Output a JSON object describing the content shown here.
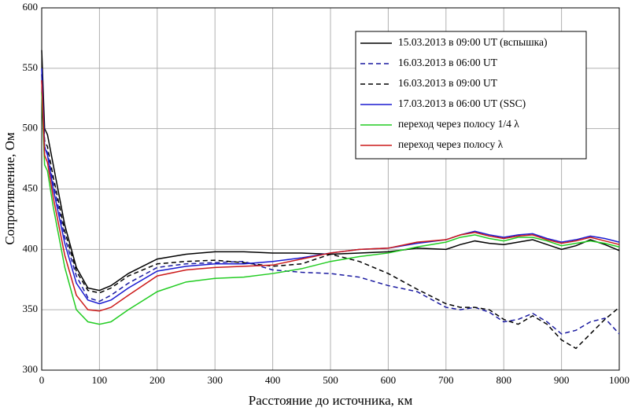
{
  "chart_data": {
    "type": "line",
    "xlabel": "Расстояние до источника, км",
    "ylabel": "Сопротивление, Ом",
    "x": [
      0,
      5,
      10,
      20,
      40,
      60,
      80,
      100,
      120,
      150,
      200,
      250,
      300,
      350,
      400,
      450,
      500,
      550,
      600,
      650,
      700,
      725,
      750,
      775,
      800,
      825,
      850,
      875,
      900,
      925,
      950,
      975,
      1000
    ],
    "series": [
      {
        "name": "15.03.2013 в 09:00 UT (вспышка)",
        "color": "#000000",
        "dash": false,
        "values": [
          565,
          500,
          495,
          470,
          420,
          385,
          368,
          366,
          370,
          380,
          392,
          396,
          398,
          398,
          397,
          397,
          396,
          397,
          398,
          401,
          400,
          404,
          407,
          405,
          404,
          406,
          408,
          404,
          400,
          403,
          408,
          404,
          399
        ]
      },
      {
        "name": "16.03.2013 в 06:00 UT",
        "color": "#1a1aa0",
        "dash": true,
        "values": [
          540,
          485,
          480,
          455,
          410,
          378,
          360,
          357,
          362,
          372,
          385,
          388,
          389,
          390,
          383,
          381,
          380,
          377,
          370,
          365,
          352,
          350,
          352,
          348,
          340,
          342,
          347,
          340,
          330,
          333,
          340,
          343,
          330
        ]
      },
      {
        "name": "16.03.2013 в 09:00 UT",
        "color": "#000000",
        "dash": true,
        "values": [
          545,
          490,
          485,
          460,
          415,
          382,
          366,
          364,
          368,
          378,
          388,
          390,
          391,
          389,
          386,
          388,
          396,
          390,
          380,
          367,
          355,
          352,
          352,
          350,
          342,
          338,
          345,
          338,
          325,
          318,
          330,
          342,
          352
        ]
      },
      {
        "name": "17.03.2013 в 06:00 UT (SSC)",
        "color": "#1a1ad0",
        "dash": false,
        "values": [
          550,
          485,
          478,
          450,
          405,
          372,
          358,
          355,
          358,
          368,
          382,
          386,
          388,
          388,
          390,
          393,
          397,
          400,
          401,
          405,
          408,
          412,
          415,
          412,
          410,
          412,
          413,
          409,
          406,
          408,
          411,
          409,
          406
        ]
      },
      {
        "name": "переход через полосу 1/4 λ",
        "color": "#22cc22",
        "dash": false,
        "values": [
          530,
          470,
          465,
          435,
          385,
          350,
          340,
          338,
          340,
          350,
          365,
          373,
          376,
          377,
          380,
          384,
          390,
          394,
          397,
          402,
          406,
          410,
          412,
          409,
          407,
          410,
          410,
          407,
          403,
          405,
          407,
          405,
          402
        ]
      },
      {
        "name": "переход через полосу  λ",
        "color": "#cc1a1a",
        "dash": false,
        "values": [
          540,
          478,
          472,
          443,
          395,
          362,
          350,
          349,
          352,
          362,
          378,
          383,
          385,
          386,
          387,
          392,
          397,
          400,
          401,
          406,
          408,
          412,
          414,
          411,
          409,
          411,
          412,
          408,
          405,
          407,
          410,
          407,
          404
        ]
      }
    ],
    "xlim": [
      0,
      1000
    ],
    "xticks": [
      0,
      100,
      200,
      300,
      400,
      500,
      600,
      700,
      800,
      900,
      1000
    ],
    "ylim": [
      300,
      600
    ],
    "yticks": [
      300,
      350,
      400,
      450,
      500,
      550,
      600
    ],
    "grid": true,
    "legend": "upper right"
  }
}
